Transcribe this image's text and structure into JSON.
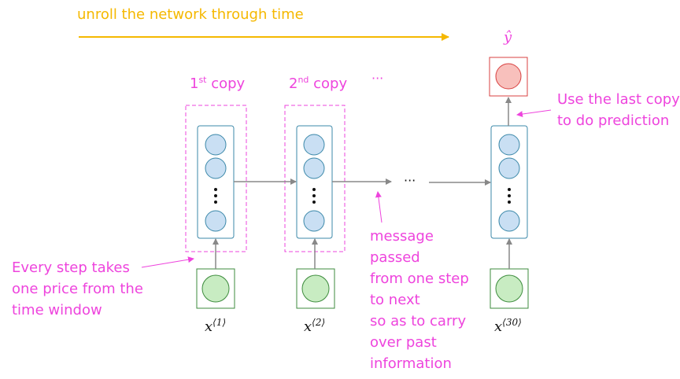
{
  "header": {
    "unroll_label": "unroll the network through time",
    "output_label": "ŷ",
    "ellipsis": "···"
  },
  "copies": [
    {
      "number": "1",
      "suffix": "st",
      "word": " copy"
    },
    {
      "number": "2",
      "suffix": "nd",
      "word": " copy"
    }
  ],
  "inputs": [
    {
      "base": "x",
      "index": "⟨1⟩"
    },
    {
      "base": "x",
      "index": "⟨2⟩"
    },
    {
      "base": "x",
      "index": "⟨30⟩"
    }
  ],
  "annotations": {
    "last_copy": [
      "Use the last copy",
      "to do prediction"
    ],
    "every_step": [
      "Every step takes",
      "one price from the",
      "time window"
    ],
    "message": [
      "message",
      "passed",
      "from one step",
      "to next",
      "so as to carry",
      "over past",
      "information"
    ]
  },
  "colors": {
    "annotation": "#ee44dd",
    "header": "#f5b800",
    "rnn_cell": "#3b88a9",
    "hidden_unit": "#c9dff3",
    "input_unit": "#c8ecc2",
    "input_border": "#3c8b3c",
    "output_unit": "#f8c0bc",
    "output_border": "#d84040",
    "arrow": "#888888"
  }
}
